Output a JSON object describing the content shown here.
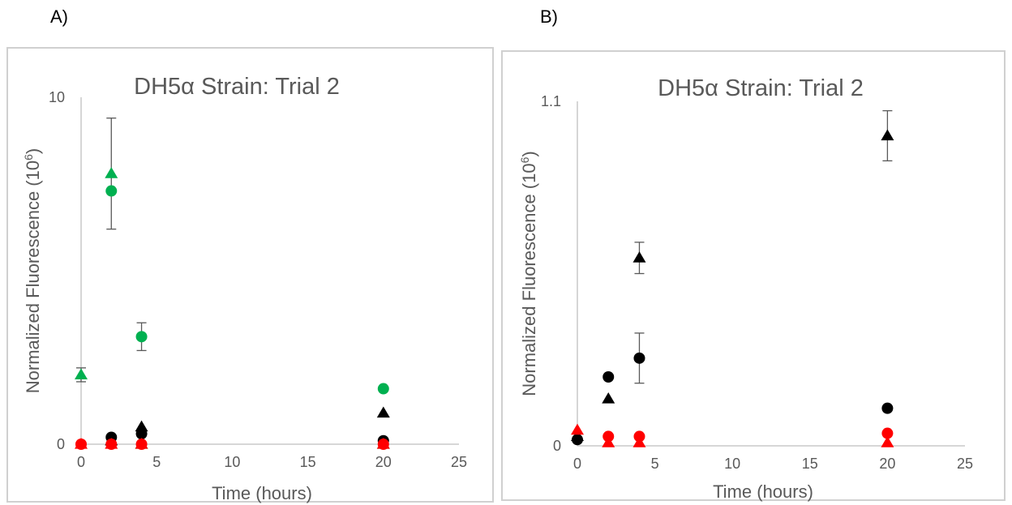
{
  "panels": {
    "a_label": "A)",
    "b_label": "B)"
  },
  "chart_data": [
    {
      "type": "scatter",
      "title": "DH5α Strain: Trial 2",
      "xlabel": "Time (hours)",
      "ylabel": "Normalized Fluorescence (10",
      "ylabel_sup": "6",
      "ylabel_end": ")",
      "xlim": [
        0,
        25
      ],
      "ylim": [
        0,
        10
      ],
      "x_ticks": [
        "0",
        "5",
        "10",
        "15",
        "20",
        "25"
      ],
      "y_ticks": [
        "0",
        "10"
      ],
      "grid": false,
      "series": [
        {
          "color": "#00b050",
          "marker": "triangle",
          "x": [
            0,
            2,
            4,
            20
          ],
          "y": [
            2.0,
            7.8,
            0.0,
            0.0
          ],
          "err": [
            0.2,
            1.6,
            0,
            0
          ]
        },
        {
          "color": "#00b050",
          "marker": "circle",
          "x": [
            2,
            4,
            20
          ],
          "y": [
            7.3,
            3.1,
            1.6
          ],
          "err": [
            0,
            0.4,
            0
          ]
        },
        {
          "color": "#000000",
          "marker": "triangle",
          "x": [
            2,
            4,
            20
          ],
          "y": [
            0.1,
            0.5,
            0.9
          ],
          "err": [
            0,
            0,
            0
          ]
        },
        {
          "color": "#000000",
          "marker": "circle",
          "x": [
            2,
            4,
            20
          ],
          "y": [
            0.2,
            0.3,
            0.1
          ],
          "err": [
            0,
            0,
            0
          ]
        },
        {
          "color": "#ff0000",
          "marker": "triangle",
          "x": [
            0,
            2,
            4,
            20
          ],
          "y": [
            0.0,
            0.0,
            0.0,
            0.0
          ],
          "err": [
            0,
            0,
            0,
            0
          ]
        },
        {
          "color": "#ff0000",
          "marker": "circle",
          "x": [
            0,
            2,
            4,
            20
          ],
          "y": [
            0.0,
            0.0,
            0.0,
            0.0
          ],
          "err": [
            0,
            0,
            0,
            0
          ]
        }
      ]
    },
    {
      "type": "scatter",
      "title": "DH5α Strain: Trial 2",
      "xlabel": "Time (hours)",
      "ylabel": "Normalized Fluorescence (10",
      "ylabel_sup": "6",
      "ylabel_end": ")",
      "xlim": [
        0,
        25
      ],
      "ylim": [
        0,
        1.1
      ],
      "x_ticks": [
        "0",
        "5",
        "10",
        "15",
        "20",
        "25"
      ],
      "y_ticks": [
        "0",
        "1.1"
      ],
      "grid": false,
      "series": [
        {
          "color": "#000000",
          "marker": "triangle",
          "x": [
            0,
            2,
            4,
            20
          ],
          "y": [
            0.03,
            0.15,
            0.6,
            0.99
          ],
          "err": [
            0,
            0,
            0.05,
            0.08
          ]
        },
        {
          "color": "#000000",
          "marker": "circle",
          "x": [
            0,
            2,
            4,
            20
          ],
          "y": [
            0.02,
            0.22,
            0.28,
            0.12
          ],
          "err": [
            0,
            0,
            0.08,
            0
          ]
        },
        {
          "color": "#ff0000",
          "marker": "triangle",
          "x": [
            0,
            2,
            4,
            20
          ],
          "y": [
            0.05,
            0.01,
            0.01,
            0.01
          ],
          "err": [
            0,
            0,
            0,
            0
          ]
        },
        {
          "color": "#ff0000",
          "marker": "circle",
          "x": [
            2,
            4,
            20
          ],
          "y": [
            0.03,
            0.03,
            0.04
          ],
          "err": [
            0,
            0,
            0
          ]
        }
      ]
    }
  ]
}
